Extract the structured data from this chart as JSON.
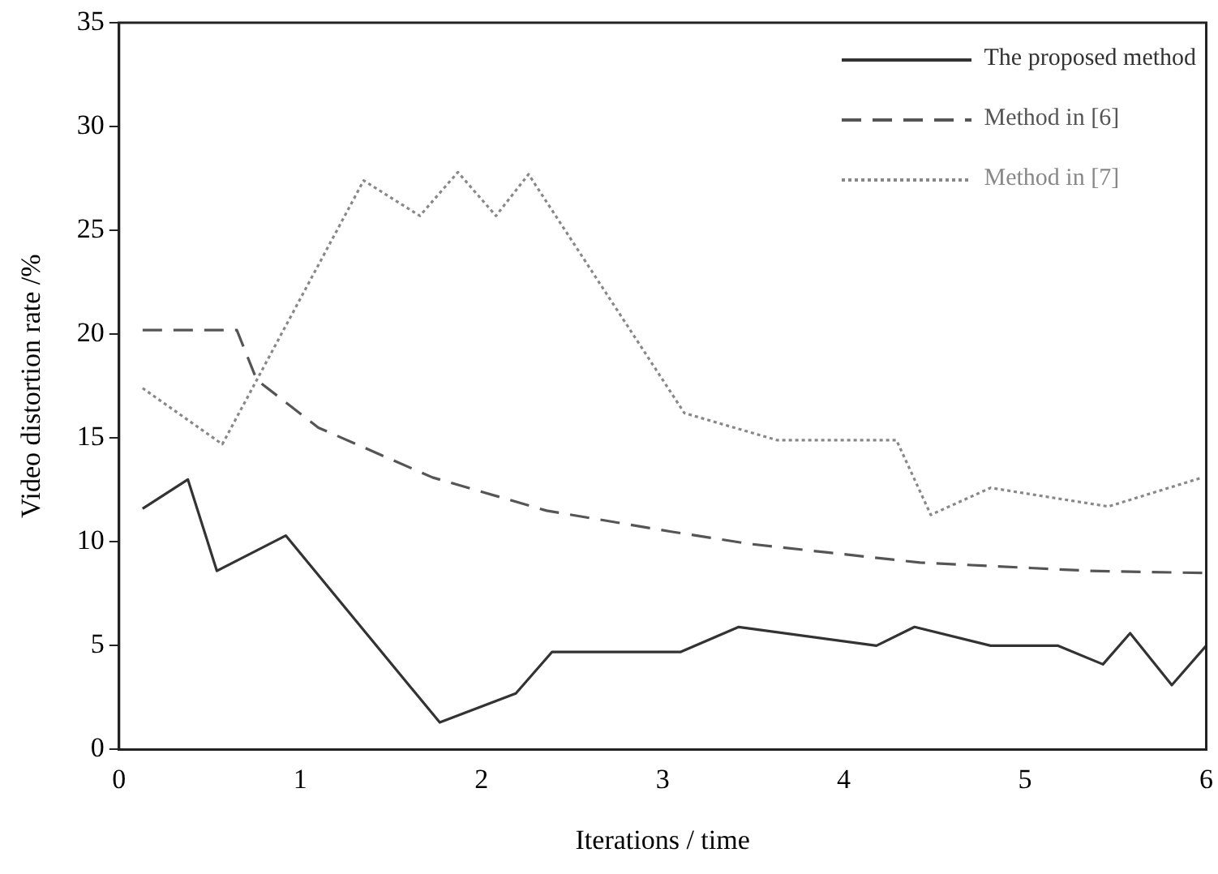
{
  "chart_data": {
    "type": "line",
    "xlabel": "Iterations / time",
    "ylabel": "Video distortion rate /%",
    "xlim": [
      0,
      6
    ],
    "xticks": [
      0,
      1,
      2,
      3,
      4,
      5,
      6
    ],
    "ylim": [
      0,
      35
    ],
    "yticks": [
      0,
      5,
      10,
      15,
      20,
      25,
      30,
      35
    ],
    "grid": false,
    "legend": "top right",
    "marker": "none",
    "series": [
      {
        "name": "The proposed method",
        "color": "#333333",
        "line_style": "solid",
        "x": [
          0.13,
          0.38,
          0.54,
          0.92,
          1.77,
          2.19,
          2.39,
          3.1,
          3.42,
          4.18,
          4.39,
          4.81,
          5.18,
          5.43,
          5.58,
          5.81,
          6.0
        ],
        "values": [
          11.6,
          13.0,
          8.6,
          10.3,
          1.3,
          2.7,
          4.7,
          4.7,
          5.9,
          5.0,
          5.9,
          5.0,
          5.0,
          4.1,
          5.6,
          3.1,
          5.0
        ]
      },
      {
        "name": "Method in [6]",
        "color": "#555555",
        "line_style": "dashed",
        "x": [
          0.13,
          0.65,
          0.76,
          1.1,
          1.73,
          2.36,
          3.04,
          3.48,
          4.42,
          5.36,
          5.98
        ],
        "values": [
          20.2,
          20.2,
          17.8,
          15.5,
          13.1,
          11.5,
          10.5,
          9.9,
          9.0,
          8.6,
          8.5
        ]
      },
      {
        "name": "Method in [7]",
        "color": "#888888",
        "line_style": "dotted",
        "x": [
          0.13,
          0.57,
          1.35,
          1.66,
          1.87,
          2.08,
          2.26,
          3.12,
          3.63,
          4.29,
          4.48,
          4.81,
          5.46,
          5.98
        ],
        "values": [
          17.4,
          14.7,
          27.4,
          25.7,
          27.8,
          25.7,
          27.7,
          16.2,
          14.9,
          14.9,
          11.3,
          12.6,
          11.7,
          13.1
        ]
      }
    ]
  }
}
